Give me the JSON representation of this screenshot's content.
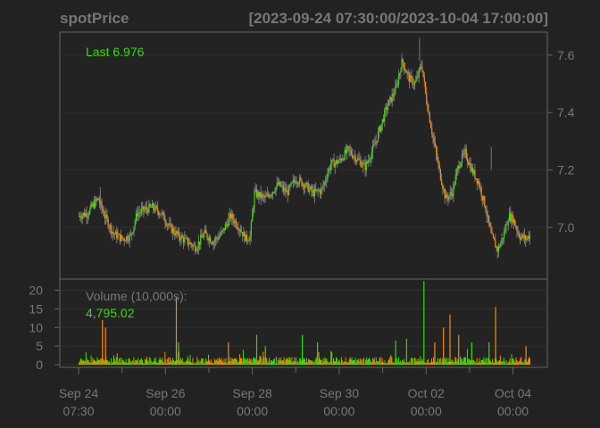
{
  "title": "spotPrice",
  "date_range": "[2023-09-24 07:30:00/2023-10-04 17:00:00]",
  "colors": {
    "background": "#222222",
    "panel": "#232323",
    "grid": "#2e2e2e",
    "frame": "#666666",
    "text": "#777777",
    "up": "#33dd00",
    "down": "#ff8a00",
    "wick": "#777777"
  },
  "chart_data": [
    {
      "type": "candlestick",
      "name": "price",
      "last_label": "Last 6.976",
      "last_value": 6.976,
      "ylim": [
        6.82,
        7.68
      ],
      "yticks": [
        7.0,
        7.2,
        7.4,
        7.6
      ],
      "ytick_labels": [
        "7.0",
        "7.2",
        "7.4",
        "7.6"
      ],
      "x_days": [
        0,
        0.2,
        0.35,
        0.45,
        0.6,
        0.8,
        1.0,
        1.2,
        1.35,
        1.5,
        1.7,
        1.9,
        2.1,
        2.3,
        2.5,
        2.7,
        2.9,
        3.1,
        3.3,
        3.5,
        3.7,
        3.85,
        3.95,
        4.05,
        4.3,
        4.6,
        4.8,
        5.0,
        5.2,
        5.4,
        5.6,
        5.8,
        6.0,
        6.2,
        6.4,
        6.6,
        6.8,
        6.95,
        7.1,
        7.3,
        7.45,
        7.6,
        7.75,
        7.9,
        8.0,
        8.15,
        8.3,
        8.45,
        8.6,
        8.75,
        8.9,
        9.05,
        9.2,
        9.35,
        9.5,
        9.65,
        9.8,
        9.9,
        10.0,
        10.15,
        10.3,
        10.4
      ],
      "prices": [
        7.04,
        7.05,
        7.08,
        7.1,
        7.04,
        6.98,
        6.96,
        6.97,
        7.05,
        7.06,
        7.07,
        7.05,
        7.0,
        6.97,
        6.95,
        6.93,
        6.98,
        6.95,
        6.98,
        7.04,
        7.0,
        6.96,
        6.97,
        7.12,
        7.1,
        7.15,
        7.12,
        7.17,
        7.15,
        7.12,
        7.13,
        7.22,
        7.23,
        7.27,
        7.24,
        7.21,
        7.28,
        7.35,
        7.42,
        7.48,
        7.58,
        7.52,
        7.5,
        7.57,
        7.45,
        7.32,
        7.2,
        7.1,
        7.12,
        7.22,
        7.26,
        7.2,
        7.16,
        7.08,
        6.97,
        6.92,
        6.98,
        7.04,
        7.03,
        6.97,
        6.96,
        6.976
      ],
      "highs": [
        {
          "x": 7.85,
          "y": 7.66
        },
        {
          "x": 0.5,
          "y": 7.14
        },
        {
          "x": 9.5,
          "y": 7.28
        }
      ]
    },
    {
      "type": "bar",
      "name": "volume",
      "label": "Volume (10,000s):",
      "last_label": "4,795.02",
      "ylim": [
        0,
        23
      ],
      "yticks": [
        0,
        5,
        10,
        15,
        20
      ],
      "ytick_labels": [
        "0",
        "5",
        "10",
        "15",
        "20"
      ],
      "spikes": [
        {
          "x": 0.55,
          "v": 12,
          "up": false
        },
        {
          "x": 0.62,
          "v": 10,
          "up": false
        },
        {
          "x": 2.25,
          "v": 18,
          "up": false
        },
        {
          "x": 2.3,
          "v": 6,
          "up": true
        },
        {
          "x": 3.45,
          "v": 6,
          "up": false
        },
        {
          "x": 4.1,
          "v": 8,
          "up": true
        },
        {
          "x": 4.3,
          "v": 5,
          "up": true
        },
        {
          "x": 5.15,
          "v": 8,
          "up": true
        },
        {
          "x": 5.5,
          "v": 6,
          "up": true
        },
        {
          "x": 7.3,
          "v": 6.5,
          "up": true
        },
        {
          "x": 7.55,
          "v": 7,
          "up": true
        },
        {
          "x": 7.95,
          "v": 22.5,
          "up": true
        },
        {
          "x": 8.2,
          "v": 6,
          "up": false
        },
        {
          "x": 8.4,
          "v": 10,
          "up": false
        },
        {
          "x": 8.55,
          "v": 13.5,
          "up": false
        },
        {
          "x": 8.75,
          "v": 8,
          "up": false
        },
        {
          "x": 9.05,
          "v": 6,
          "up": true
        },
        {
          "x": 9.45,
          "v": 6,
          "up": true
        },
        {
          "x": 9.6,
          "v": 15.5,
          "up": false
        },
        {
          "x": 10.3,
          "v": 5,
          "up": false
        }
      ]
    }
  ],
  "x_axis": {
    "ticks": [
      {
        "day": 0,
        "line1": "Sep 24",
        "line2": "07:30"
      },
      {
        "day": 2,
        "line1": "Sep 26",
        "line2": "00:00"
      },
      {
        "day": 4,
        "line1": "Sep 28",
        "line2": "00:00"
      },
      {
        "day": 6,
        "line1": "Sep 30",
        "line2": "00:00"
      },
      {
        "day": 8,
        "line1": "Oct 02",
        "line2": "00:00"
      },
      {
        "day": 10,
        "line1": "Oct 04",
        "line2": "00:00"
      }
    ],
    "range": [
      0,
      10.4
    ]
  }
}
